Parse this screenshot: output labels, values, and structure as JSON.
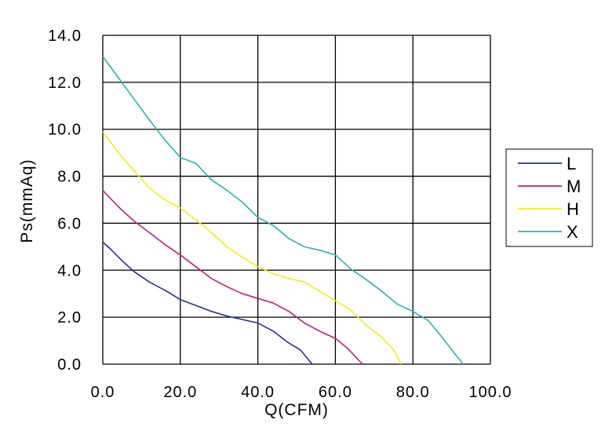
{
  "chart_data": {
    "type": "line",
    "title": "",
    "xlabel": "Q(CFM)",
    "ylabel": "Ps(mmAq)",
    "xlim": [
      0,
      100
    ],
    "ylim": [
      0,
      14
    ],
    "xticks": [
      "0.0",
      "20.0",
      "40.0",
      "60.0",
      "80.0",
      "100.0"
    ],
    "yticks": [
      "0.0",
      "2.0",
      "4.0",
      "6.0",
      "8.0",
      "10.0",
      "12.0",
      "14.0"
    ],
    "grid": true,
    "legend_position": "right",
    "series": [
      {
        "name": "L",
        "color": "#27308f",
        "points": [
          [
            0,
            5.2
          ],
          [
            2,
            4.9
          ],
          [
            5,
            4.4
          ],
          [
            8,
            3.95
          ],
          [
            12,
            3.5
          ],
          [
            16,
            3.15
          ],
          [
            20,
            2.75
          ],
          [
            24,
            2.5
          ],
          [
            28,
            2.25
          ],
          [
            32,
            2.05
          ],
          [
            36,
            1.9
          ],
          [
            40,
            1.75
          ],
          [
            44,
            1.4
          ],
          [
            48,
            0.9
          ],
          [
            51,
            0.6
          ],
          [
            54,
            0.0
          ]
        ]
      },
      {
        "name": "M",
        "color": "#be1f80",
        "points": [
          [
            0,
            7.4
          ],
          [
            4,
            6.7
          ],
          [
            8,
            6.1
          ],
          [
            12,
            5.6
          ],
          [
            16,
            5.1
          ],
          [
            20,
            4.65
          ],
          [
            24,
            4.15
          ],
          [
            28,
            3.65
          ],
          [
            32,
            3.3
          ],
          [
            36,
            3.0
          ],
          [
            40,
            2.8
          ],
          [
            44,
            2.6
          ],
          [
            48,
            2.25
          ],
          [
            52,
            1.75
          ],
          [
            56,
            1.4
          ],
          [
            60,
            1.1
          ],
          [
            63,
            0.7
          ],
          [
            67,
            0.0
          ]
        ]
      },
      {
        "name": "H",
        "color": "#f5ed13",
        "points": [
          [
            0,
            9.9
          ],
          [
            4,
            9.0
          ],
          [
            8,
            8.25
          ],
          [
            12,
            7.5
          ],
          [
            16,
            7.0
          ],
          [
            20,
            6.65
          ],
          [
            24,
            6.15
          ],
          [
            28,
            5.6
          ],
          [
            32,
            5.0
          ],
          [
            36,
            4.55
          ],
          [
            40,
            4.15
          ],
          [
            44,
            3.85
          ],
          [
            48,
            3.65
          ],
          [
            52,
            3.5
          ],
          [
            56,
            3.1
          ],
          [
            60,
            2.7
          ],
          [
            64,
            2.3
          ],
          [
            68,
            1.65
          ],
          [
            72,
            1.15
          ],
          [
            75,
            0.6
          ],
          [
            77,
            0.0
          ]
        ]
      },
      {
        "name": "X",
        "color": "#2cb3ac",
        "points": [
          [
            0,
            13.1
          ],
          [
            4,
            12.2
          ],
          [
            8,
            11.3
          ],
          [
            12,
            10.4
          ],
          [
            16,
            9.55
          ],
          [
            20,
            8.8
          ],
          [
            24,
            8.55
          ],
          [
            28,
            7.85
          ],
          [
            32,
            7.4
          ],
          [
            36,
            6.9
          ],
          [
            40,
            6.25
          ],
          [
            44,
            5.9
          ],
          [
            48,
            5.35
          ],
          [
            52,
            5.0
          ],
          [
            56,
            4.85
          ],
          [
            60,
            4.65
          ],
          [
            64,
            4.05
          ],
          [
            68,
            3.6
          ],
          [
            72,
            3.1
          ],
          [
            76,
            2.55
          ],
          [
            80,
            2.25
          ],
          [
            84,
            1.85
          ],
          [
            88,
            1.05
          ],
          [
            91,
            0.4
          ],
          [
            93,
            0.0
          ]
        ]
      }
    ]
  }
}
